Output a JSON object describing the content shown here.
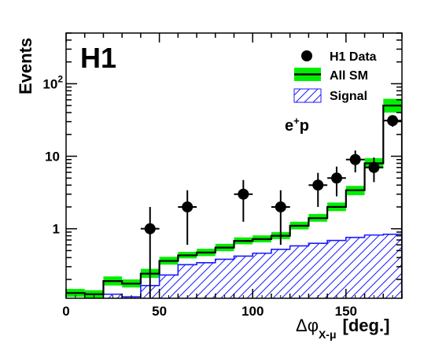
{
  "chart_data": {
    "type": "histogram",
    "experiment_label": "H1",
    "process_label": "e",
    "process_label_sup": "+",
    "process_label_suffix": "p",
    "ylabel": "Events",
    "xlabel_symbol": "Δφ",
    "xlabel_sub": "X-μ",
    "xlabel_unit": "[deg.]",
    "xlim": [
      0,
      180
    ],
    "ylim": [
      0.11,
      500
    ],
    "yscale": "log",
    "x_ticks": [
      {
        "value": 0,
        "label": "0"
      },
      {
        "value": 50,
        "label": "50"
      },
      {
        "value": 100,
        "label": "100"
      },
      {
        "value": 150,
        "label": "150"
      }
    ],
    "y_ticks": [
      {
        "value": 1,
        "label": "1",
        "exp": ""
      },
      {
        "value": 10,
        "label": "10",
        "exp": ""
      },
      {
        "value": 100,
        "label": "10",
        "exp": "2"
      }
    ],
    "bin_edges": [
      0,
      10,
      20,
      30,
      40,
      50,
      60,
      70,
      80,
      90,
      100,
      110,
      120,
      130,
      140,
      150,
      160,
      170,
      180
    ],
    "legend": {
      "position": "top-right",
      "entries": [
        {
          "label": "H1 Data",
          "kind": "marker"
        },
        {
          "label": "All SM",
          "kind": "band"
        },
        {
          "label": "Signal",
          "kind": "hatch"
        }
      ]
    },
    "series": [
      {
        "name": "All SM",
        "kind": "histogram_band",
        "line_color": "#000000",
        "band_color": "#00ee00",
        "values": [
          0.13,
          0.125,
          0.19,
          0.175,
          0.24,
          0.36,
          0.43,
          0.47,
          0.55,
          0.68,
          0.72,
          0.8,
          1.1,
          1.4,
          2.0,
          3.4,
          8.0,
          50
        ],
        "band_low": [
          0.115,
          0.11,
          0.165,
          0.155,
          0.21,
          0.32,
          0.39,
          0.42,
          0.49,
          0.61,
          0.65,
          0.72,
          0.98,
          1.25,
          1.75,
          2.9,
          6.8,
          40
        ],
        "band_high": [
          0.148,
          0.142,
          0.22,
          0.2,
          0.28,
          0.41,
          0.48,
          0.53,
          0.62,
          0.76,
          0.81,
          0.9,
          1.25,
          1.6,
          2.3,
          3.9,
          9.4,
          62
        ]
      },
      {
        "name": "Signal",
        "kind": "histogram_hatched",
        "color": "#1a1aff",
        "values": [
          0.09,
          0.09,
          0.125,
          0.115,
          0.165,
          0.23,
          0.32,
          0.34,
          0.38,
          0.42,
          0.46,
          0.52,
          0.58,
          0.63,
          0.69,
          0.76,
          0.82,
          0.84
        ]
      },
      {
        "name": "H1 Data",
        "kind": "points",
        "color": "#000000",
        "points": [
          {
            "x": 45,
            "y": 1,
            "lo": 0.11,
            "hi": 2.0
          },
          {
            "x": 65,
            "y": 2,
            "lo": 0.6,
            "hi": 3.4
          },
          {
            "x": 95,
            "y": 3,
            "lo": 1.25,
            "hi": 4.7
          },
          {
            "x": 115,
            "y": 2,
            "lo": 0.6,
            "hi": 3.4
          },
          {
            "x": 135,
            "y": 4,
            "lo": 2.0,
            "hi": 5.9
          },
          {
            "x": 145,
            "y": 5,
            "lo": 2.8,
            "hi": 7.2
          },
          {
            "x": 155,
            "y": 9,
            "lo": 6.0,
            "hi": 12.0
          },
          {
            "x": 165,
            "y": 7,
            "lo": 4.4,
            "hi": 9.6
          },
          {
            "x": 175,
            "y": 31,
            "lo": 25.5,
            "hi": 36.5
          }
        ]
      }
    ]
  }
}
